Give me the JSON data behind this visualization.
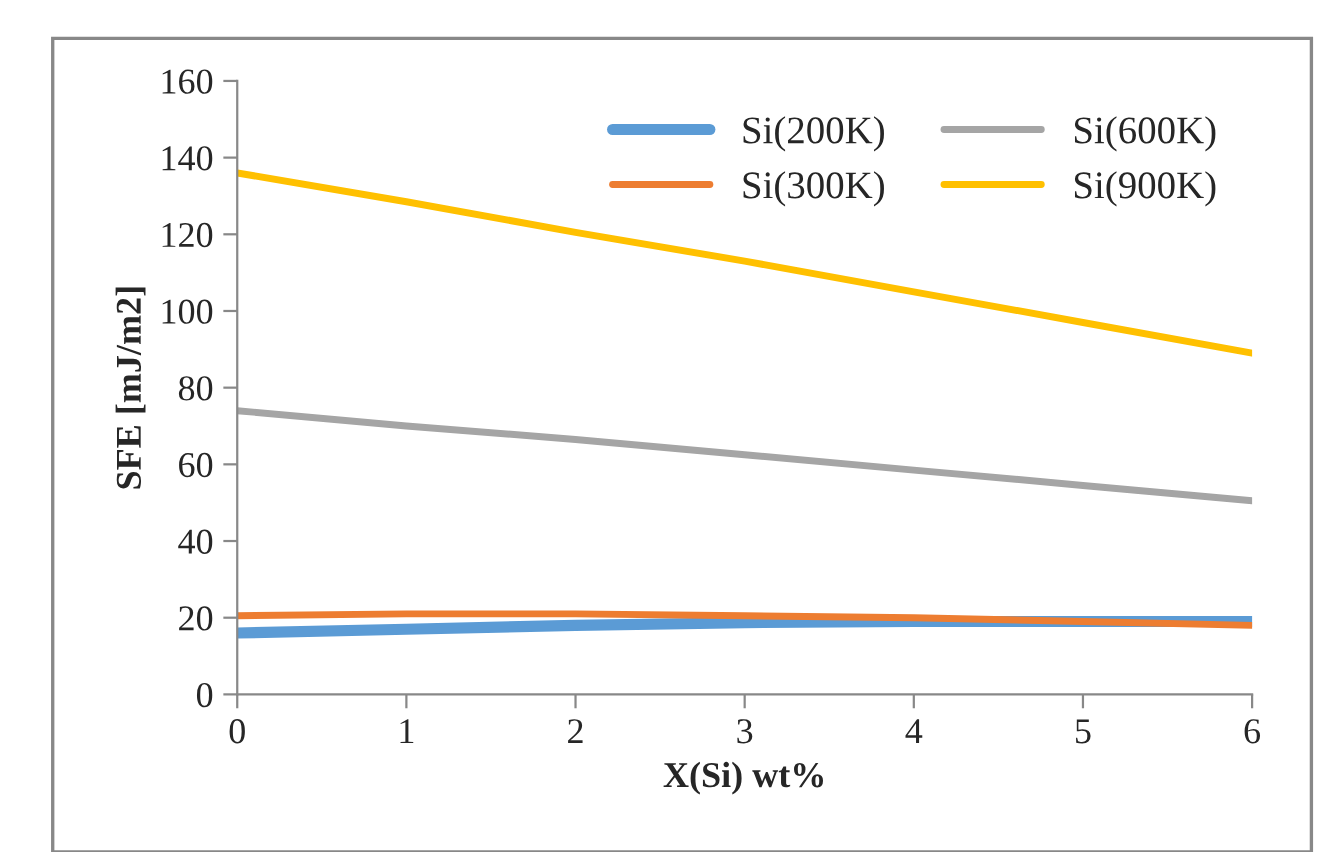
{
  "chart_data": {
    "type": "line",
    "xlabel": "X(Si) wt%",
    "ylabel": "SFE [mJ/m2]",
    "x": [
      0,
      1,
      2,
      3,
      4,
      5,
      6
    ],
    "series": [
      {
        "name": "Si(200K)",
        "color": "#5b9bd5",
        "values": [
          16,
          17,
          18,
          18.7,
          19,
          19,
          19
        ]
      },
      {
        "name": "Si(300K)",
        "color": "#ed7d31",
        "values": [
          20.5,
          21,
          21,
          20.5,
          20,
          19,
          18
        ]
      },
      {
        "name": "Si(600K)",
        "color": "#a5a5a5",
        "values": [
          74,
          70,
          66.5,
          62.5,
          58.5,
          54.5,
          50.5
        ]
      },
      {
        "name": "Si(900K)",
        "color": "#ffc000",
        "values": [
          136,
          128.5,
          120.5,
          113,
          105,
          97,
          89
        ]
      }
    ],
    "xlim": [
      0,
      6
    ],
    "xticks": [
      0,
      1,
      2,
      3,
      4,
      5,
      6
    ],
    "ylim": [
      0,
      160
    ],
    "yticks": [
      0,
      20,
      40,
      60,
      80,
      100,
      120,
      140,
      160
    ],
    "grid": false,
    "legend": "top right",
    "marker": "none",
    "line_style": "solid"
  }
}
